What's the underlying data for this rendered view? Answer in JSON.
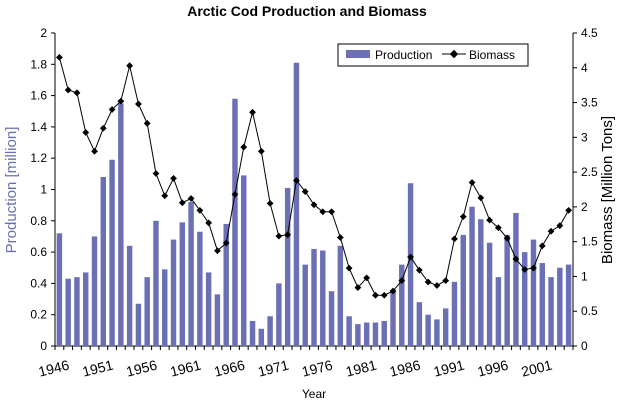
{
  "chart_data": {
    "type": "bar+line",
    "title": "Arctic Cod Production and Biomass",
    "xlabel": "Year",
    "ylabel_left": "Production [million]",
    "ylabel_right": "Biomass [Million Tons]",
    "ylim_left": [
      0,
      2
    ],
    "ylim_right": [
      0,
      4.5
    ],
    "yticks_left": [
      "0",
      "0.2",
      "0.4",
      "0.6",
      "0.8",
      "1",
      "1.2",
      "1.4",
      "1.6",
      "1.8",
      "2"
    ],
    "yticks_right": [
      "0",
      "0.5",
      "1",
      "1.5",
      "2",
      "2.5",
      "3",
      "3.5",
      "4",
      "4.5"
    ],
    "xticks": [
      "1946",
      "1951",
      "1956",
      "1961",
      "1966",
      "1971",
      "1976",
      "1981",
      "1986",
      "1991",
      "1996",
      "2001"
    ],
    "legend_position": "top-right",
    "grid": false,
    "x": [
      1946,
      1947,
      1948,
      1949,
      1950,
      1951,
      1952,
      1953,
      1954,
      1955,
      1956,
      1957,
      1958,
      1959,
      1960,
      1961,
      1962,
      1963,
      1964,
      1965,
      1966,
      1967,
      1968,
      1969,
      1970,
      1971,
      1972,
      1973,
      1974,
      1975,
      1976,
      1977,
      1978,
      1979,
      1980,
      1981,
      1982,
      1983,
      1984,
      1985,
      1986,
      1987,
      1988,
      1989,
      1990,
      1991,
      1992,
      1993,
      1994,
      1995,
      1996,
      1997,
      1998,
      1999,
      2000,
      2001,
      2002,
      2003,
      2004
    ],
    "series": [
      {
        "name": "Production",
        "type": "bar",
        "axis": "left",
        "color": "#6b6fb3",
        "values": [
          0.72,
          0.43,
          0.44,
          0.47,
          0.7,
          1.08,
          1.19,
          1.55,
          0.64,
          0.27,
          0.44,
          0.8,
          0.49,
          0.68,
          0.79,
          0.92,
          0.73,
          0.47,
          0.33,
          0.78,
          1.58,
          1.09,
          0.16,
          0.11,
          0.19,
          0.4,
          1.01,
          1.81,
          0.52,
          0.62,
          0.61,
          0.35,
          0.64,
          0.19,
          0.14,
          0.15,
          0.15,
          0.16,
          0.35,
          0.52,
          1.04,
          0.28,
          0.2,
          0.17,
          0.24,
          0.41,
          0.71,
          0.89,
          0.81,
          0.66,
          0.44,
          0.71,
          0.85,
          0.6,
          0.68,
          0.53,
          0.44,
          0.5,
          0.52
        ]
      },
      {
        "name": "Biomass",
        "type": "line",
        "axis": "right",
        "color": "#000000",
        "values": [
          4.15,
          3.68,
          3.64,
          3.07,
          2.8,
          3.13,
          3.4,
          3.52,
          4.03,
          3.48,
          3.2,
          2.48,
          2.16,
          2.41,
          2.06,
          2.12,
          1.95,
          1.77,
          1.37,
          1.48,
          2.18,
          2.86,
          3.36,
          2.8,
          2.05,
          1.58,
          1.6,
          2.38,
          2.22,
          2.03,
          1.93,
          1.93,
          1.56,
          1.12,
          0.84,
          0.98,
          0.73,
          0.73,
          0.79,
          0.94,
          1.28,
          1.09,
          0.92,
          0.87,
          0.94,
          1.54,
          1.86,
          2.35,
          2.13,
          1.81,
          1.7,
          1.55,
          1.25,
          1.1,
          1.12,
          1.44,
          1.65,
          1.73,
          1.95
        ]
      }
    ]
  }
}
